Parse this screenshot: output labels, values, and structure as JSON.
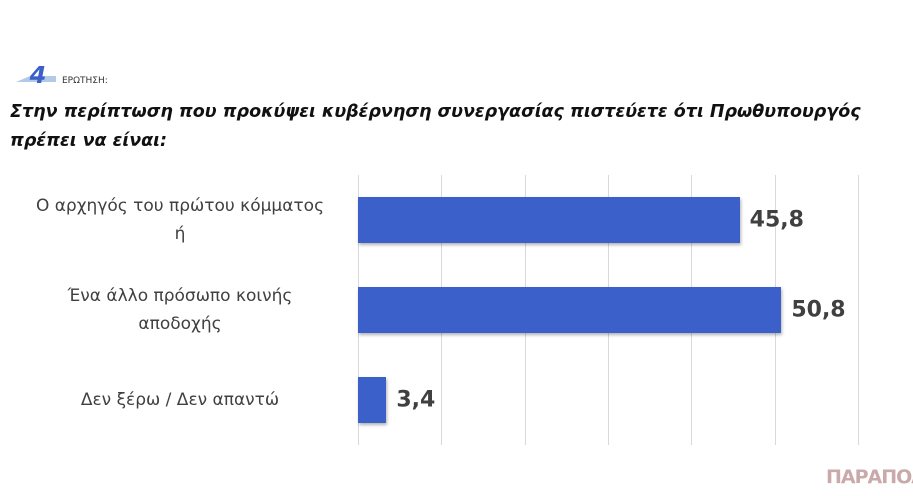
{
  "question_number": "4",
  "question_label": "ΕΡΩΤΗΣΗ:",
  "watermark": "ΠΑΡΑΠΟΛ",
  "chart_data": {
    "type": "bar",
    "orientation": "horizontal",
    "title": "Στην περίπτωση που προκύψει κυβέρνηση συνεργασίας πιστεύετε ότι Πρωθυπουργός\nπρέπει να είναι:",
    "categories": [
      "Ο αρχηγός του πρώτου κόμματος\nή",
      "Ένα άλλο πρόσωπο κοινής\nαποδοχής",
      "Δεν ξέρω / Δεν απαντώ"
    ],
    "values": [
      45.8,
      50.8,
      3.4
    ],
    "value_labels": [
      "45,8",
      "50,8",
      "3,4"
    ],
    "color": "#3b60c9",
    "xlim": [
      0,
      60
    ],
    "xticks": [
      0,
      10,
      20,
      30,
      40,
      50,
      60
    ],
    "grid": true
  }
}
